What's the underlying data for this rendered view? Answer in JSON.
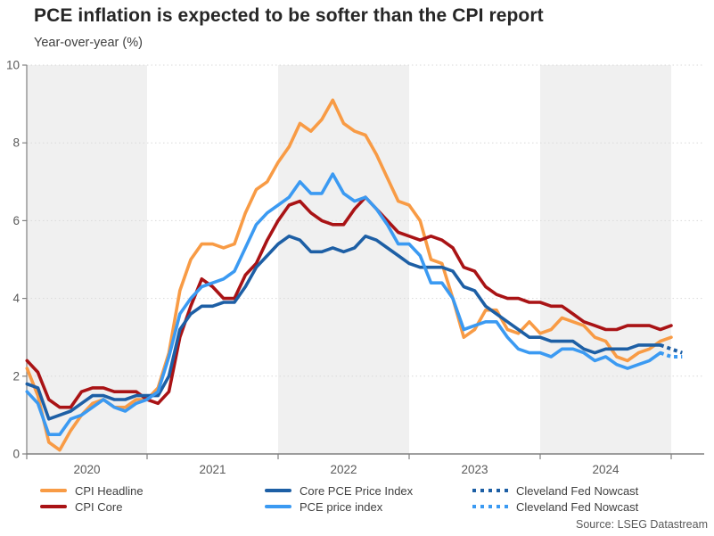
{
  "chart_data": {
    "type": "line",
    "title": "PCE inflation is expected to be softer than the CPI report",
    "subtitle": "Year-over-year (%)",
    "source": "Source: LSEG Datastream",
    "xlabel": "",
    "ylabel": "Year-over-year (%)",
    "ylim": [
      0,
      10
    ],
    "y_ticks": [
      0,
      2,
      4,
      6,
      8,
      10
    ],
    "x_years": [
      2020,
      2021,
      2022,
      2023,
      2024
    ],
    "shaded_years": [
      2020,
      2022,
      2024
    ],
    "x_start_month": "2020-02",
    "x_end_month": "2025-02",
    "grid": "horizontal-dotted",
    "legend_position": "bottom",
    "colors": {
      "cpi_headline": "#F89B45",
      "cpi_core": "#A91315",
      "core_pce": "#1D5FA5",
      "pce": "#3B9AF2",
      "band": "#F0F0F0",
      "gridline": "#D9D9D9",
      "axis": "#808080",
      "tick_label": "#595959"
    },
    "series": [
      {
        "name": "CPI Headline",
        "color": "#F89B45",
        "style": "solid",
        "start_index": 0,
        "values": [
          2.2,
          1.5,
          0.3,
          0.1,
          0.6,
          1.0,
          1.3,
          1.4,
          1.2,
          1.2,
          1.4,
          1.4,
          1.7,
          2.6,
          4.2,
          5.0,
          5.4,
          5.4,
          5.3,
          5.4,
          6.2,
          6.8,
          7.0,
          7.5,
          7.9,
          8.5,
          8.3,
          8.6,
          9.1,
          8.5,
          8.3,
          8.2,
          7.7,
          7.1,
          6.5,
          6.4,
          6.0,
          5.0,
          4.9,
          4.0,
          3.0,
          3.2,
          3.7,
          3.7,
          3.2,
          3.1,
          3.4,
          3.1,
          3.2,
          3.5,
          3.4,
          3.3,
          3.0,
          2.9,
          2.5,
          2.4,
          2.6,
          2.7,
          2.9,
          3.0
        ]
      },
      {
        "name": "CPI Core",
        "color": "#A91315",
        "style": "solid",
        "start_index": 0,
        "values": [
          2.4,
          2.1,
          1.4,
          1.2,
          1.2,
          1.6,
          1.7,
          1.7,
          1.6,
          1.6,
          1.6,
          1.4,
          1.3,
          1.6,
          3.0,
          3.8,
          4.5,
          4.3,
          4.0,
          4.0,
          4.6,
          4.9,
          5.5,
          6.0,
          6.4,
          6.5,
          6.2,
          6.0,
          5.9,
          5.9,
          6.3,
          6.6,
          6.3,
          6.0,
          5.7,
          5.6,
          5.5,
          5.6,
          5.5,
          5.3,
          4.8,
          4.7,
          4.3,
          4.1,
          4.0,
          4.0,
          3.9,
          3.9,
          3.8,
          3.8,
          3.6,
          3.4,
          3.3,
          3.2,
          3.2,
          3.3,
          3.3,
          3.3,
          3.2,
          3.3
        ]
      },
      {
        "name": "Core PCE Price Index",
        "color": "#1D5FA5",
        "style": "solid",
        "start_index": 0,
        "values": [
          1.8,
          1.7,
          0.9,
          1.0,
          1.1,
          1.3,
          1.5,
          1.5,
          1.4,
          1.4,
          1.5,
          1.5,
          1.5,
          2.0,
          3.2,
          3.6,
          3.8,
          3.8,
          3.9,
          3.9,
          4.3,
          4.8,
          5.1,
          5.4,
          5.6,
          5.5,
          5.2,
          5.2,
          5.3,
          5.2,
          5.3,
          5.6,
          5.5,
          5.3,
          5.1,
          4.9,
          4.8,
          4.8,
          4.8,
          4.7,
          4.3,
          4.2,
          3.8,
          3.6,
          3.4,
          3.2,
          3.0,
          3.0,
          2.9,
          2.9,
          2.9,
          2.7,
          2.6,
          2.7,
          2.7,
          2.7,
          2.8,
          2.8,
          2.8
        ]
      },
      {
        "name": "PCE price index",
        "color": "#3B9AF2",
        "style": "solid",
        "start_index": 0,
        "values": [
          1.6,
          1.3,
          0.5,
          0.5,
          0.9,
          1.0,
          1.2,
          1.4,
          1.2,
          1.1,
          1.3,
          1.4,
          1.6,
          2.5,
          3.6,
          4.0,
          4.3,
          4.4,
          4.5,
          4.7,
          5.3,
          5.9,
          6.2,
          6.4,
          6.6,
          7.0,
          6.7,
          6.7,
          7.2,
          6.7,
          6.5,
          6.6,
          6.3,
          5.9,
          5.4,
          5.4,
          5.1,
          4.4,
          4.4,
          4.0,
          3.2,
          3.3,
          3.4,
          3.4,
          3.0,
          2.7,
          2.6,
          2.6,
          2.5,
          2.7,
          2.7,
          2.6,
          2.4,
          2.5,
          2.3,
          2.2,
          2.3,
          2.4,
          2.6
        ]
      },
      {
        "name": "Cleveland Fed Nowcast",
        "color": "#1D5FA5",
        "style": "dotted",
        "start_index": 58,
        "values": [
          2.8,
          2.7,
          2.6
        ]
      },
      {
        "name": "Cleveland Fed Nowcast",
        "color": "#3B9AF2",
        "style": "dotted",
        "start_index": 58,
        "values": [
          2.6,
          2.5,
          2.5
        ]
      }
    ]
  }
}
